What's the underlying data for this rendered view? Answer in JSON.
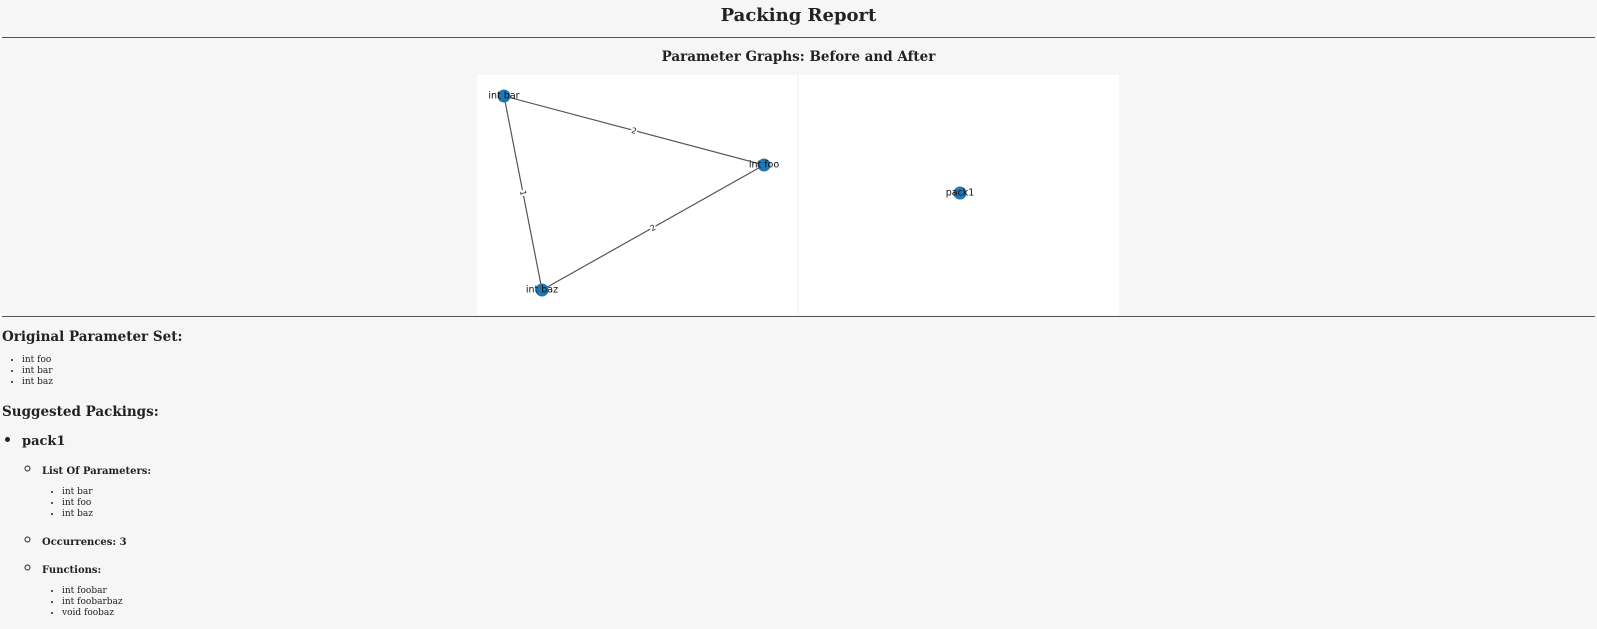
{
  "report": {
    "title": "Packing Report"
  },
  "graphs": {
    "title": "Parameter Graphs: Before and After",
    "before": {
      "nodes": [
        {
          "id": "int bar",
          "label": "int bar"
        },
        {
          "id": "int foo",
          "label": "int foo"
        },
        {
          "id": "int baz",
          "label": "int baz"
        }
      ],
      "edges": [
        {
          "source": "int bar",
          "target": "int foo",
          "label": "2"
        },
        {
          "source": "int bar",
          "target": "int baz",
          "label": "1"
        },
        {
          "source": "int baz",
          "target": "int foo",
          "label": "2"
        }
      ],
      "node_color": "#1f77b4"
    },
    "after": {
      "nodes": [
        {
          "id": "pack1",
          "label": "pack1"
        }
      ],
      "edges": [],
      "node_color": "#1f77b4"
    }
  },
  "original": {
    "title": "Original Parameter Set:",
    "params": [
      "int foo",
      "int bar",
      "int baz"
    ]
  },
  "suggested": {
    "title": "Suggested Packings:",
    "packs": [
      {
        "name": "pack1",
        "params_heading": "List Of Parameters:",
        "params": [
          "int bar",
          "int foo",
          "int baz"
        ],
        "occurrences_label": "Occurrences: 3",
        "functions_heading": "Functions:",
        "functions": [
          "int foobar",
          "int foobarbaz",
          "void foobaz"
        ]
      }
    ]
  }
}
